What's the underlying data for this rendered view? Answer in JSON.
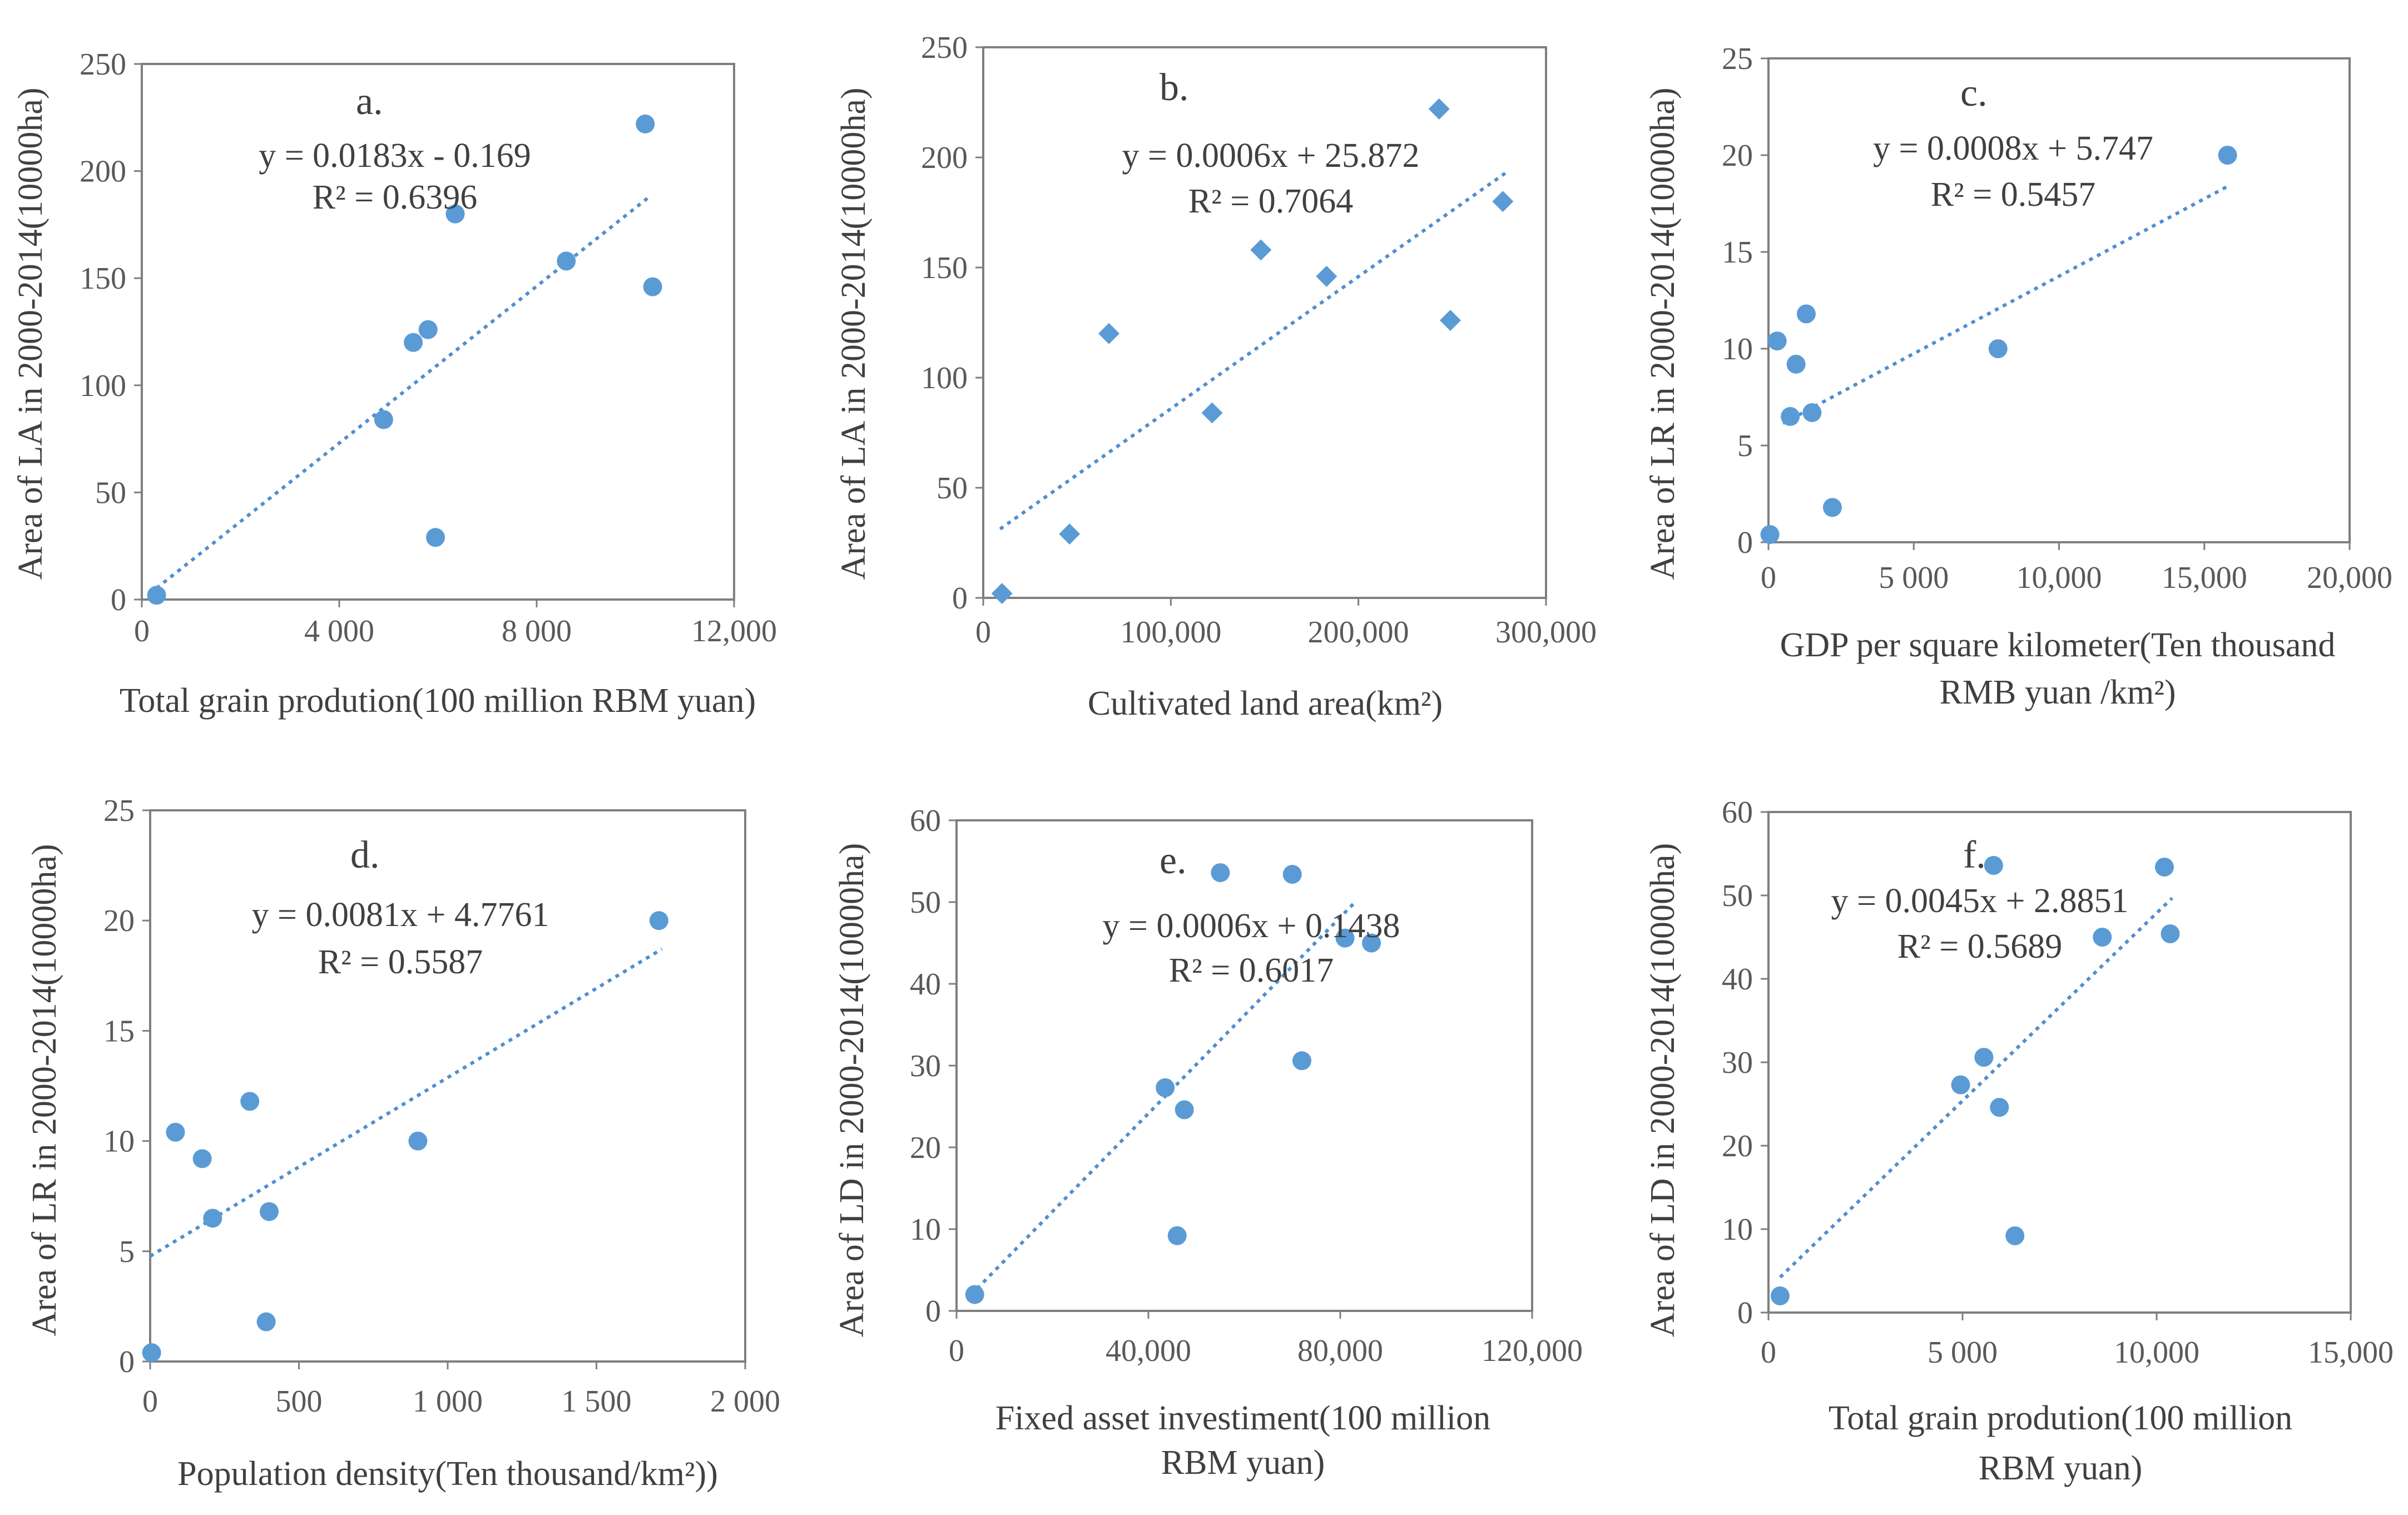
{
  "colors": {
    "marker": "#5b9bd5",
    "trend": "#4f8fcf",
    "axis": "#7f7f7f",
    "text": "#404040"
  },
  "chart_data": [
    {
      "type": "scatter",
      "panel": "a.",
      "marker": "circle",
      "xlabel": "Total grain prodution(100 million RBM yuan)",
      "ylabel": "Area of  LA  in 2000-2014(10000ha)",
      "xlim": [
        0,
        12000
      ],
      "ylim": [
        0,
        250
      ],
      "xticks": [
        0,
        4000,
        8000,
        12000
      ],
      "xtick_labels": [
        "0",
        "4 000",
        "8 000",
        "12,000"
      ],
      "yticks": [
        0,
        50,
        100,
        150,
        200,
        250
      ],
      "ytick_labels": [
        "0",
        "50",
        "100",
        "150",
        "200",
        "250"
      ],
      "equation": "y = 0.0183x - 0.169",
      "r2": "R² = 0.6396",
      "trend": {
        "slope": 0.0183,
        "intercept": -0.169,
        "x_range": [
          300,
          10300
        ]
      },
      "points": [
        [
          300,
          2
        ],
        [
          4900,
          84
        ],
        [
          5500,
          120
        ],
        [
          5800,
          126
        ],
        [
          5950,
          29
        ],
        [
          6350,
          180
        ],
        [
          8600,
          158
        ],
        [
          10200,
          222
        ],
        [
          10350,
          146
        ]
      ]
    },
    {
      "type": "scatter",
      "panel": "b.",
      "marker": "diamond",
      "xlabel": "Cultivated land area(km²)",
      "ylabel": "Area of LA in 2000-2014(10000ha)",
      "xlim": [
        0,
        300000
      ],
      "ylim": [
        0,
        250
      ],
      "xticks": [
        0,
        100000,
        200000,
        300000
      ],
      "xtick_labels": [
        "0",
        "100,000",
        "200,000",
        "300,000"
      ],
      "yticks": [
        0,
        50,
        100,
        150,
        200,
        250
      ],
      "ytick_labels": [
        "0",
        "50",
        "100",
        "150",
        "200",
        "250"
      ],
      "equation": "y = 0.0006x + 25.872",
      "r2": "R² = 0.7064",
      "trend": {
        "slope": 0.0006,
        "intercept": 25.872,
        "x_range": [
          9000,
          280000
        ]
      },
      "points": [
        [
          10000,
          2
        ],
        [
          46000,
          29
        ],
        [
          67000,
          120
        ],
        [
          122000,
          84
        ],
        [
          148000,
          158
        ],
        [
          183000,
          146
        ],
        [
          243000,
          222
        ],
        [
          249000,
          126
        ],
        [
          277000,
          180
        ]
      ]
    },
    {
      "type": "scatter",
      "panel": "c.",
      "marker": "circle",
      "xlabel": "GDP per square kilometer(Ten thousand RMB yuan /km²)",
      "ylabel": "Area of LR in 2000-2014(10000ha)",
      "xlim": [
        0,
        20000
      ],
      "ylim": [
        0,
        25
      ],
      "xticks": [
        0,
        5000,
        10000,
        15000,
        20000
      ],
      "xtick_labels": [
        "0",
        "5 000",
        "10,000",
        "15,000",
        "20,000"
      ],
      "yticks": [
        0,
        5,
        10,
        15,
        20,
        25
      ],
      "ytick_labels": [
        "0",
        "5",
        "10",
        "15",
        "20",
        "25"
      ],
      "equation": "y = 0.0008x + 5.747",
      "r2": "R² = 0.5457",
      "trend": {
        "slope": 0.0008,
        "intercept": 5.747,
        "x_range": [
          500,
          15800
        ]
      },
      "points": [
        [
          50,
          0.4
        ],
        [
          300,
          10.4
        ],
        [
          750,
          6.5
        ],
        [
          950,
          9.2
        ],
        [
          1300,
          11.8
        ],
        [
          1500,
          6.7
        ],
        [
          2200,
          1.8
        ],
        [
          7900,
          10
        ],
        [
          15800,
          20
        ]
      ]
    },
    {
      "type": "scatter",
      "panel": "d.",
      "marker": "circle",
      "xlabel": "Population density(Ten thousand/km²))",
      "ylabel": "Area of LR in 2000-2014(10000ha)",
      "xlim": [
        0,
        2000
      ],
      "ylim": [
        0,
        25
      ],
      "xticks": [
        0,
        500,
        1000,
        1500,
        2000
      ],
      "xtick_labels": [
        "0",
        "500",
        "1 000",
        "1 500",
        "2 000"
      ],
      "yticks": [
        0,
        5,
        10,
        15,
        20,
        25
      ],
      "ytick_labels": [
        "0",
        "5",
        "10",
        "15",
        "20",
        "25"
      ],
      "equation": "y = 0.0081x + 4.7761",
      "r2": "R² = 0.5587",
      "trend": {
        "slope": 0.0081,
        "intercept": 4.7761,
        "x_range": [
          0,
          1720
        ]
      },
      "points": [
        [
          5,
          0.4
        ],
        [
          85,
          10.4
        ],
        [
          175,
          9.2
        ],
        [
          210,
          6.5
        ],
        [
          335,
          11.8
        ],
        [
          390,
          1.8
        ],
        [
          400,
          6.8
        ],
        [
          900,
          10
        ],
        [
          1710,
          20
        ]
      ]
    },
    {
      "type": "scatter",
      "panel": "e.",
      "marker": "circle",
      "xlabel": "Fixed asset investiment(100 million RBM yuan)",
      "ylabel": "Area of LD in 2000-2014(10000ha)",
      "xlim": [
        0,
        120000
      ],
      "ylim": [
        0,
        60
      ],
      "xticks": [
        0,
        40000,
        80000,
        120000
      ],
      "xtick_labels": [
        "0",
        "40,000",
        "80,000",
        "120,000"
      ],
      "yticks": [
        0,
        10,
        20,
        30,
        40,
        50,
        60
      ],
      "ytick_labels": [
        "0",
        "10",
        "20",
        "30",
        "40",
        "50",
        "60"
      ],
      "equation": "y = 0.0006x + 0.1438",
      "r2": "R² = 0.6017",
      "trend": {
        "slope": 0.0006,
        "intercept": 0.1438,
        "x_range": [
          3000,
          83000
        ]
      },
      "points": [
        [
          3800,
          2
        ],
        [
          43500,
          27.3
        ],
        [
          46000,
          9.2
        ],
        [
          47500,
          24.6
        ],
        [
          55000,
          53.6
        ],
        [
          70000,
          53.4
        ],
        [
          72000,
          30.6
        ],
        [
          81000,
          45.6
        ],
        [
          86500,
          45
        ]
      ]
    },
    {
      "type": "scatter",
      "panel": "f.",
      "marker": "circle",
      "xlabel": "Total grain prodution(100 million RBM yuan)",
      "ylabel": "Area of LD in 2000-2014(10000ha)",
      "xlim": [
        0,
        15000
      ],
      "ylim": [
        0,
        60
      ],
      "xticks": [
        0,
        5000,
        10000,
        15000
      ],
      "xtick_labels": [
        "0",
        "5 000",
        "10,000",
        "15,000"
      ],
      "yticks": [
        0,
        10,
        20,
        30,
        40,
        50,
        60
      ],
      "ytick_labels": [
        "0",
        "10",
        "20",
        "30",
        "40",
        "50",
        "60"
      ],
      "equation": "y = 0.0045x + 2.8851",
      "r2": "R² = 0.5689",
      "trend": {
        "slope": 0.0045,
        "intercept": 2.8851,
        "x_range": [
          300,
          10400
        ]
      },
      "points": [
        [
          300,
          2
        ],
        [
          4950,
          27.3
        ],
        [
          5550,
          30.6
        ],
        [
          5800,
          53.6
        ],
        [
          5950,
          24.6
        ],
        [
          6350,
          9.2
        ],
        [
          8600,
          45
        ],
        [
          10200,
          53.4
        ],
        [
          10350,
          45.4
        ]
      ]
    }
  ]
}
